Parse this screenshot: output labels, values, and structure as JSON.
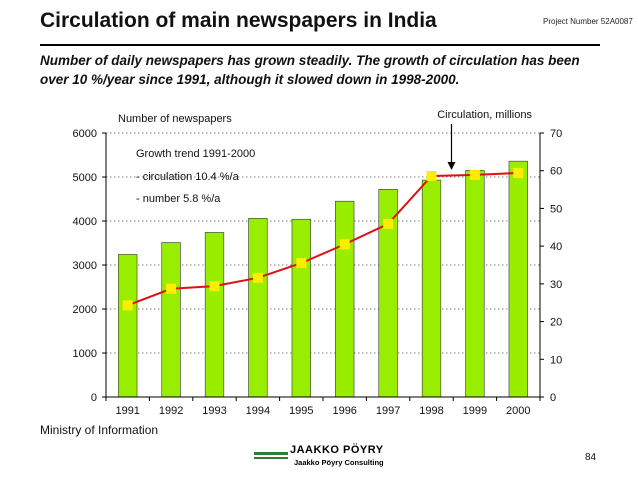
{
  "header": {
    "title": "Circulation of main newspapers in India",
    "project": "Project Number 52A0087",
    "subtitle": "Number of daily newspapers has grown steadily.  The growth of circulation has been over 10 %/year since 1991, although it slowed down in 1998-2000."
  },
  "footer": {
    "source": "Ministry of Information",
    "page_number": "84",
    "logo_name": "JAAKKO PÖYRY",
    "logo_sub": "Jaakko Pöyry Consulting"
  },
  "colors": {
    "bar": "#99ee00",
    "bar_stroke": "#333333",
    "line": "#dd1111",
    "marker": "#ffee00"
  },
  "chart_data": {
    "type": "bar+line",
    "categories": [
      "1991",
      "1992",
      "1993",
      "1994",
      "1995",
      "1996",
      "1997",
      "1998",
      "1999",
      "2000"
    ],
    "series": [
      {
        "name": "Number of newspapers",
        "axis": "left",
        "type": "bar",
        "values": [
          3240,
          3510,
          3740,
          4060,
          4040,
          4450,
          4720,
          4930,
          5150,
          5360
        ]
      },
      {
        "name": "Circulation, millions",
        "axis": "right",
        "type": "line",
        "values": [
          24.3,
          28.7,
          29.4,
          31.6,
          35.5,
          40.5,
          45.9,
          58.6,
          58.9,
          59.4
        ]
      }
    ],
    "left_axis_label": "Number of newspapers",
    "right_axis_label": "Circulation, millions",
    "ylim_left": [
      0,
      6000
    ],
    "yticks_left": [
      0,
      1000,
      2000,
      3000,
      4000,
      5000,
      6000
    ],
    "ylim_right": [
      0,
      70
    ],
    "yticks_right": [
      0,
      10,
      20,
      30,
      40,
      50,
      60,
      70
    ],
    "grid": "horizontal dotted",
    "annotation": {
      "title": "Growth trend 1991-2000",
      "lines": [
        "- circulation 10.4 %/a",
        "- number 5.8 %/a"
      ]
    },
    "arrow_target_category": "1998"
  }
}
